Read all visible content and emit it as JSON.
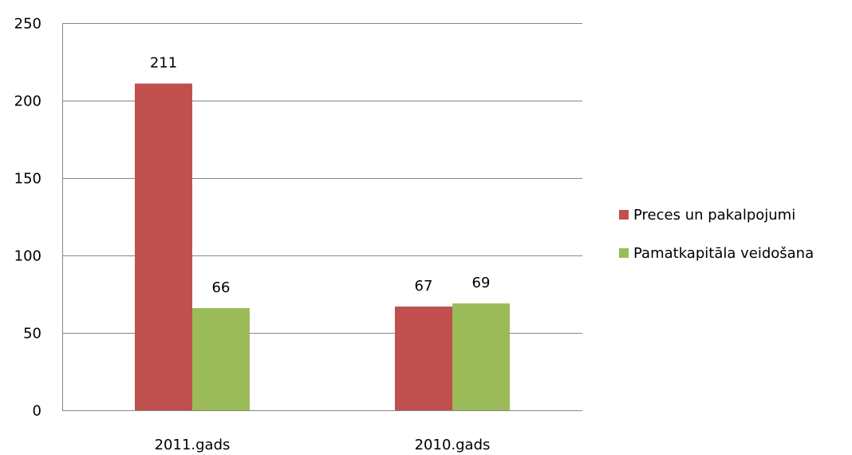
{
  "chart_data": {
    "type": "bar",
    "categories": [
      "2011.gads",
      "2010.gads"
    ],
    "series": [
      {
        "name": "Preces un pakalpojumi",
        "values": [
          211,
          67
        ],
        "color": "#C0504D"
      },
      {
        "name": "Pamatkapitāla veidošana",
        "values": [
          66,
          69
        ],
        "color": "#9BBB59"
      }
    ],
    "data_labels": [
      [
        "211",
        "67"
      ],
      [
        "66",
        "69"
      ]
    ],
    "ylim": [
      0,
      250
    ],
    "yticks": [
      0,
      50,
      100,
      150,
      200,
      250
    ],
    "ytick_labels": [
      "0",
      "50",
      "100",
      "150",
      "200",
      "250"
    ],
    "grid": true,
    "legend_position": "right",
    "title": "",
    "xlabel": "",
    "ylabel": ""
  }
}
